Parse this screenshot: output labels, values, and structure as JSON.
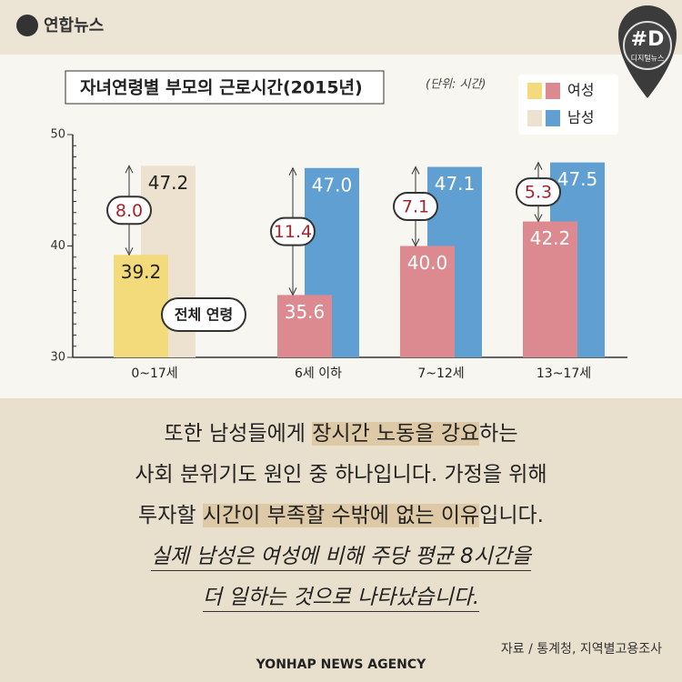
{
  "header": {
    "logo": "연합뉴스",
    "badge": "#D",
    "badge_sub": "디지털뉴스"
  },
  "chart_data": {
    "type": "bar",
    "title": "자녀연령별 부모의 근로시간(2015년)",
    "unit": "(단위: 시간)",
    "categories": [
      "0~17세",
      "6세 이하",
      "7~12세",
      "13~17세"
    ],
    "series": [
      {
        "name": "여성",
        "colors": [
          "#f3da7a",
          "#dc8a90",
          "#dc8a90",
          "#dc8a90"
        ],
        "values": [
          39.2,
          35.6,
          40.0,
          42.2
        ],
        "value_labels": [
          "39.2",
          "35.6",
          "40.0",
          "42.2"
        ]
      },
      {
        "name": "남성",
        "colors": [
          "#ece2cf",
          "#5f9fd2",
          "#5f9fd2",
          "#5f9fd2"
        ],
        "values": [
          47.2,
          47.0,
          47.1,
          47.5
        ],
        "value_labels": [
          "47.2",
          "47.0",
          "47.1",
          "47.5"
        ]
      }
    ],
    "differences": {
      "values": [
        8,
        11.4,
        7.1,
        5.3
      ],
      "value_labels": [
        "8.0",
        "11.4",
        "7.1",
        "5.3"
      ]
    },
    "annotation": "전체 연령",
    "ylim": [
      30,
      50
    ],
    "yticks": [
      30,
      40,
      50
    ]
  },
  "body": {
    "lines": [
      [
        {
          "text": "또한 남성들에게 ",
          "highlight": false
        },
        {
          "text": "장시간 노동을 강요",
          "highlight": true
        },
        {
          "text": "하는",
          "highlight": false
        }
      ],
      [
        {
          "text": "사회 분위기도 원인 중 하나입니다. 가정을 위해",
          "highlight": false
        }
      ],
      [
        {
          "text": "투자할 ",
          "highlight": false
        },
        {
          "text": "시간이 부족할 수밖에 없는 이유",
          "highlight": true
        },
        {
          "text": "입니다.",
          "highlight": false
        }
      ]
    ],
    "italic_lines": [
      "실제 남성은 여성에 비해 주당 평균 8시간을",
      "더 일하는 것으로 나타났습니다."
    ]
  },
  "source": "자료 / 통계청, 지역별고용조사",
  "footer": "YONHAP NEWS AGENCY"
}
